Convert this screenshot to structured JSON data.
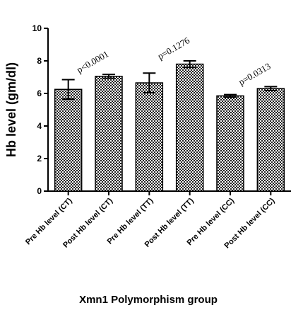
{
  "chart_data": {
    "type": "bar",
    "title": "",
    "xlabel": "Xmn1 Polymorphism group",
    "ylabel": "Hb level (gm/dl)",
    "ylim": [
      0,
      10
    ],
    "yticks": [
      "0",
      "2",
      "4",
      "6",
      "8",
      "10"
    ],
    "categories": [
      "Pre Hb level (CT)",
      "Post Hb level (CT)",
      "Pre Hb level (TT)",
      "Post  Hb level (TT)",
      "Pre  Hb level (CC)",
      "Post  Hb level (CC)"
    ],
    "values": [
      6.25,
      7.05,
      6.65,
      7.8,
      5.85,
      6.3
    ],
    "errors": [
      0.6,
      0.12,
      0.6,
      0.2,
      0.08,
      0.12
    ],
    "annotations": [
      {
        "text": "p<0.0001",
        "between": [
          0,
          1
        ]
      },
      {
        "text": "p=0.1276",
        "between": [
          2,
          3
        ]
      },
      {
        "text": "p=0.0313",
        "between": [
          4,
          5
        ]
      }
    ],
    "grid": false,
    "bar_fill": "checkered"
  }
}
